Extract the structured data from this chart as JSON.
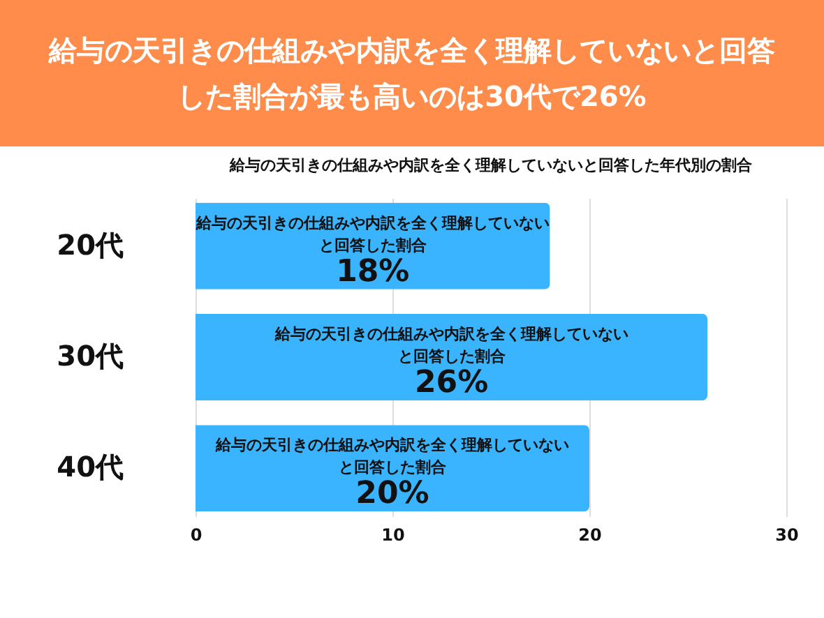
{
  "chart_data": {
    "type": "bar",
    "orientation": "horizontal",
    "title": "給与の天引きの仕組みや内訳を全く理解していないと回答した割合が最も高いのは30代で26%",
    "subtitle": "給与の天引きの仕組みや内訳を全く理解していないと回答した年代別の割合",
    "categories": [
      "20代",
      "30代",
      "40代"
    ],
    "series": [
      {
        "name": "給与の天引きの仕組みや内訳を全く理解していないと回答した割合",
        "color": "#3ab4ff",
        "values": [
          18,
          26,
          20
        ],
        "value_labels": [
          "18%",
          "26%",
          "20%"
        ]
      }
    ],
    "xlim": [
      0,
      30
    ],
    "xticks": [
      0,
      10,
      20,
      30
    ],
    "grid": "x",
    "legend": false
  }
}
